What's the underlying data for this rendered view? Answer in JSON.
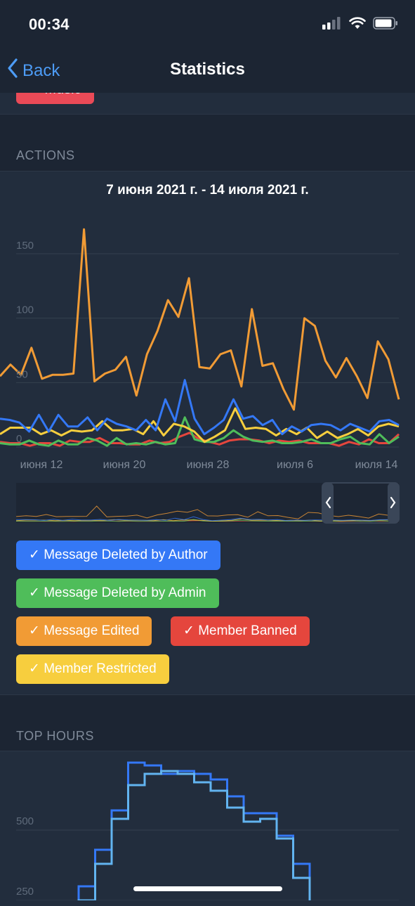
{
  "status_bar": {
    "time": "00:34"
  },
  "nav": {
    "back_label": "Back",
    "title": "Statistics"
  },
  "previous_chip": {
    "label": "✓ Music"
  },
  "actions": {
    "header": "ACTIONS",
    "date_range": "7 июня 2021 г. - 14 июля 2021 г.",
    "legend": [
      {
        "label": "✓ Message Deleted by Author",
        "color": "#3478f6"
      },
      {
        "label": "✓ Message Deleted by Admin",
        "color": "#4fbd5a"
      },
      {
        "label": "✓ Message Edited",
        "color": "#f19b35"
      },
      {
        "label": "✓ Member Banned",
        "color": "#e5463d"
      },
      {
        "label": "✓ Member Restricted",
        "color": "#f7ce3e"
      }
    ]
  },
  "top_hours": {
    "header": "TOP HOURS",
    "y_ticks": [
      "500",
      "250"
    ]
  },
  "chart_data": [
    {
      "type": "line",
      "title": "7 июня 2021 г. - 14 июля 2021 г.",
      "x_tick_labels": [
        "июня 12",
        "июня 20",
        "июня 28",
        "июля 6",
        "июля 14"
      ],
      "y_tick_labels": [
        "0",
        "50",
        "100",
        "150"
      ],
      "ylim": [
        0,
        180
      ],
      "grid": true,
      "series": [
        {
          "name": "Message Deleted by Author",
          "color": "#3478f6",
          "values": [
            22,
            21,
            19,
            12,
            25,
            12,
            25,
            16,
            16,
            23,
            13,
            22,
            18,
            16,
            13,
            21,
            13,
            37,
            20,
            52,
            22,
            10,
            15,
            21,
            37,
            22,
            24,
            17,
            21,
            10,
            16,
            12,
            17,
            18,
            17,
            13,
            18,
            15,
            12,
            20,
            21,
            17
          ]
        },
        {
          "name": "Message Deleted by Admin",
          "color": "#4fbd5a",
          "values": [
            3,
            2,
            2,
            5,
            2,
            1,
            5,
            2,
            2,
            7,
            5,
            1,
            7,
            2,
            3,
            2,
            4,
            2,
            3,
            23,
            6,
            4,
            4,
            7,
            13,
            8,
            5,
            4,
            5,
            3,
            3,
            4,
            6,
            3,
            3,
            6,
            8,
            3,
            2,
            10,
            3,
            8
          ]
        },
        {
          "name": "Message Edited",
          "color": "#f19b35",
          "values": [
            55,
            64,
            56,
            77,
            53,
            56,
            56,
            57,
            169,
            51,
            57,
            60,
            70,
            40,
            72,
            90,
            114,
            101,
            131,
            62,
            61,
            72,
            75,
            47,
            107,
            63,
            65,
            45,
            29,
            100,
            94,
            67,
            54,
            69,
            55,
            38,
            82,
            68,
            37
          ]
        },
        {
          "name": "Member Banned",
          "color": "#e5463d",
          "values": [
            4,
            3,
            3,
            1,
            3,
            3,
            1,
            5,
            4,
            4,
            7,
            3,
            3,
            2,
            2,
            5,
            3,
            4,
            8,
            11,
            6,
            4,
            2,
            5,
            6,
            6,
            5,
            3,
            5,
            4,
            5,
            3,
            3,
            3,
            1,
            4,
            2,
            6,
            3,
            3,
            10
          ]
        },
        {
          "name": "Member Restricted",
          "color": "#f7ce3e",
          "values": [
            10,
            15,
            15,
            15,
            10,
            13,
            9,
            13,
            12,
            13,
            20,
            13,
            13,
            14,
            10,
            20,
            9,
            18,
            16,
            12,
            4,
            8,
            13,
            30,
            14,
            15,
            14,
            9,
            14,
            10,
            15,
            7,
            12,
            7,
            10,
            14,
            9,
            16,
            18,
            16
          ]
        }
      ]
    },
    {
      "type": "line",
      "title": "",
      "y_tick_labels": [
        "250",
        "500"
      ],
      "grid": true,
      "series": [
        {
          "color": "#3478f6",
          "values": [
            300,
            430,
            570,
            740,
            730,
            700,
            710,
            700,
            680,
            620,
            560,
            560,
            480,
            380,
            200
          ]
        },
        {
          "color": "#62b4f0",
          "values": [
            250,
            380,
            540,
            660,
            700,
            710,
            700,
            670,
            640,
            580,
            530,
            540,
            470,
            330,
            150
          ]
        }
      ]
    }
  ]
}
